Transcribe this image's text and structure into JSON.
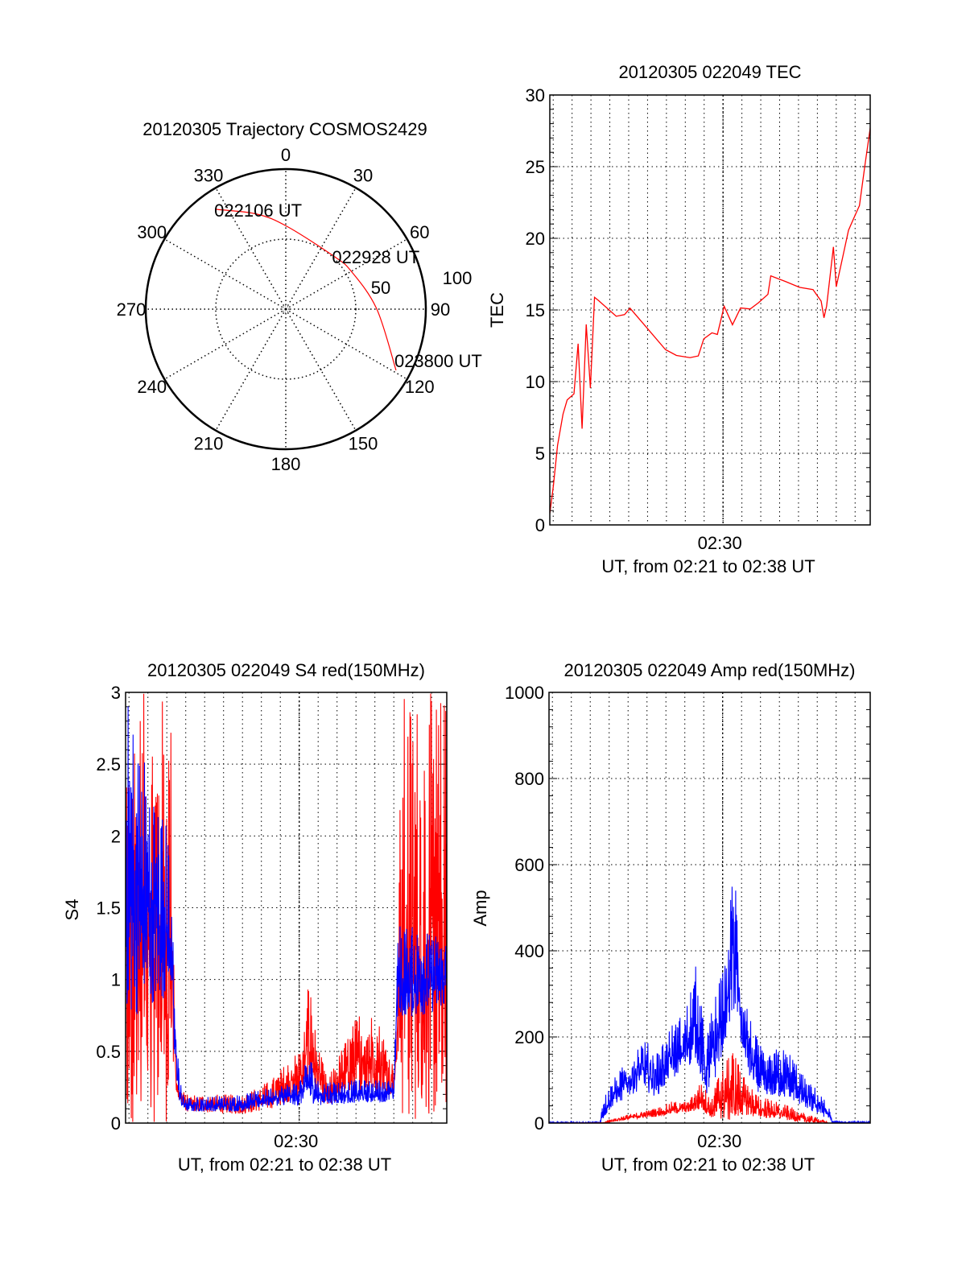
{
  "colors": {
    "red": "#ff0000",
    "blue": "#0000ff",
    "axis": "#000000"
  },
  "chart_data": [
    {
      "type": "polar",
      "title": "20120305 Trajectory COSMOS2429",
      "angle_labels": [
        "0",
        "30",
        "60",
        "90",
        "120",
        "150",
        "180",
        "210",
        "240",
        "270",
        "300",
        "330"
      ],
      "radial_labels": [
        "50",
        "100"
      ],
      "rlim": [
        0,
        100
      ],
      "trajectory": {
        "az": [
          325,
          343,
          1,
          42,
          60,
          90,
          119
        ],
        "r": [
          87,
          71,
          59,
          51,
          54,
          65,
          90
        ]
      },
      "annotations": [
        {
          "text": "022106 UT",
          "point_index": 0
        },
        {
          "text": "022928 UT",
          "point_index": 3
        },
        {
          "text": "023800 UT",
          "point_index": 6
        }
      ]
    },
    {
      "type": "line",
      "title": "20120305 022049 TEC",
      "xlabel": "UT, from 02:21 to 02:38 UT",
      "ylabel": "TEC",
      "x_unit": "minutes after 02:00 UT",
      "xlim": [
        20.82,
        37.8
      ],
      "ylim": [
        0,
        30
      ],
      "yticks": [
        "0",
        "5",
        "10",
        "15",
        "20",
        "25",
        "30"
      ],
      "xticks": [
        {
          "value": 30,
          "label": "02:30"
        }
      ],
      "grid": true,
      "series": [
        {
          "name": "TEC",
          "color": "#ff0000",
          "x": [
            20.82,
            21.01,
            21.23,
            21.52,
            21.74,
            22.1,
            22.32,
            22.53,
            22.75,
            22.97,
            23.19,
            23.4,
            24.34,
            24.78,
            25.07,
            25.79,
            26.95,
            27.53,
            28.25,
            28.69,
            28.98,
            29.41,
            29.7,
            30.06,
            30.5,
            30.93,
            31.44,
            31.88,
            32.38,
            32.53,
            33.32,
            34.05,
            34.77,
            35.2,
            35.35,
            35.49,
            35.85,
            36.0,
            36.36,
            36.65,
            36.94,
            37.23,
            37.52,
            37.81,
            38.0
          ],
          "y": [
            0.8,
            2.7,
            5.6,
            7.7,
            8.6,
            9.1,
            12.6,
            6.8,
            13.9,
            9.5,
            15.8,
            15.6,
            14.6,
            14.6,
            15.2,
            14.0,
            12.3,
            11.9,
            11.6,
            11.7,
            12.9,
            13.5,
            13.3,
            15.2,
            14.0,
            15.2,
            15.1,
            15.4,
            16.0,
            17.4,
            17.0,
            16.5,
            16.5,
            15.7,
            14.5,
            15.3,
            19.4,
            16.5,
            18.8,
            20.5,
            21.5,
            22.3,
            25.0,
            27.7,
            29.8
          ]
        }
      ]
    },
    {
      "type": "line",
      "title": "20120305 022049 S4 red(150MHz)",
      "xlabel": "UT, from 02:21 to 02:38 UT",
      "ylabel": "S4",
      "x_unit": "minutes after 02:00 UT",
      "xlim": [
        20.82,
        37.8
      ],
      "ylim": [
        0,
        3
      ],
      "yticks": [
        "0",
        "0.5",
        "1",
        "1.5",
        "2",
        "2.5",
        "3"
      ],
      "xticks": [
        {
          "value": 30,
          "label": "02:30"
        }
      ],
      "grid": true,
      "series": [
        {
          "name": "red",
          "color": "#ff0000",
          "envelope": [
            [
              20.82,
              0,
              3
            ],
            [
              23.0,
              0,
              3
            ],
            [
              23.2,
              0.3,
              3
            ],
            [
              23.5,
              0.2,
              0.3
            ],
            [
              24,
              0.08,
              0.2
            ],
            [
              27,
              0.06,
              0.2
            ],
            [
              28.5,
              0.1,
              0.3
            ],
            [
              29.5,
              0.15,
              0.45
            ],
            [
              30.2,
              0.2,
              0.55
            ],
            [
              30.5,
              0.3,
              1.05
            ],
            [
              30.9,
              0.2,
              0.6
            ],
            [
              31.5,
              0.1,
              0.3
            ],
            [
              32.5,
              0.2,
              0.6
            ],
            [
              33.4,
              0.2,
              0.85
            ],
            [
              34.3,
              0.2,
              0.7
            ],
            [
              35.0,
              0.2,
              0.4
            ],
            [
              35.2,
              0.5,
              0.9
            ],
            [
              35.4,
              0,
              3
            ],
            [
              37.8,
              0,
              3
            ]
          ]
        },
        {
          "name": "blue",
          "color": "#0000ff",
          "envelope": [
            [
              20.82,
              0.7,
              3
            ],
            [
              23.2,
              0.9,
              2
            ],
            [
              23.4,
              0.4,
              0.9
            ],
            [
              23.7,
              0.1,
              0.3
            ],
            [
              24,
              0.08,
              0.18
            ],
            [
              27,
              0.08,
              0.2
            ],
            [
              28.5,
              0.12,
              0.25
            ],
            [
              30,
              0.12,
              0.3
            ],
            [
              30.5,
              0.15,
              0.5
            ],
            [
              31,
              0.12,
              0.3
            ],
            [
              35,
              0.15,
              0.3
            ],
            [
              35.2,
              0.7,
              1.4
            ],
            [
              37.8,
              0.8,
              1.3
            ]
          ]
        }
      ]
    },
    {
      "type": "line",
      "title": "20120305 022049 Amp red(150MHz)",
      "xlabel": "UT, from 02:21 to 02:38 UT",
      "ylabel": "Amp",
      "x_unit": "minutes after 02:00 UT",
      "xlim": [
        20.82,
        37.8
      ],
      "ylim": [
        0,
        1000
      ],
      "yticks": [
        "0",
        "200",
        "400",
        "600",
        "800",
        "1000"
      ],
      "xticks": [
        {
          "value": 30,
          "label": "02:30"
        }
      ],
      "grid": true,
      "series": [
        {
          "name": "blue",
          "color": "#0000ff",
          "envelope": [
            [
              20.82,
              0,
              3
            ],
            [
              23.5,
              0,
              3
            ],
            [
              23.7,
              10,
              60
            ],
            [
              24.2,
              40,
              100
            ],
            [
              25,
              60,
              150
            ],
            [
              25.7,
              80,
              200
            ],
            [
              26.5,
              60,
              170
            ],
            [
              27.3,
              100,
              230
            ],
            [
              28,
              120,
              260
            ],
            [
              28.6,
              150,
              370
            ],
            [
              29.1,
              60,
              200
            ],
            [
              29.6,
              100,
              300
            ],
            [
              30.2,
              200,
              380
            ],
            [
              30.6,
              250,
              650
            ],
            [
              31.0,
              150,
              350
            ],
            [
              31.6,
              80,
              220
            ],
            [
              32.3,
              60,
              150
            ],
            [
              33,
              60,
              180
            ],
            [
              33.7,
              50,
              160
            ],
            [
              34.4,
              30,
              100
            ],
            [
              35,
              20,
              80
            ],
            [
              35.6,
              10,
              40
            ],
            [
              35.8,
              0,
              5
            ],
            [
              37.8,
              0,
              3
            ]
          ]
        },
        {
          "name": "red",
          "color": "#ff0000",
          "envelope": [
            [
              20.82,
              0,
              0
            ],
            [
              23.7,
              0,
              1
            ],
            [
              24.5,
              5,
              15
            ],
            [
              25.5,
              10,
              25
            ],
            [
              26.5,
              15,
              35
            ],
            [
              27.3,
              20,
              50
            ],
            [
              28.2,
              25,
              50
            ],
            [
              28.9,
              30,
              100
            ],
            [
              29.4,
              10,
              50
            ],
            [
              29.8,
              10,
              120
            ],
            [
              30.5,
              0,
              180
            ],
            [
              31.2,
              20,
              100
            ],
            [
              31.8,
              10,
              70
            ],
            [
              32.5,
              10,
              55
            ],
            [
              33.5,
              5,
              40
            ],
            [
              34.5,
              0,
              20
            ],
            [
              35.3,
              0,
              8
            ],
            [
              35.6,
              0,
              0
            ],
            [
              37.8,
              0,
              0
            ]
          ]
        }
      ]
    }
  ]
}
